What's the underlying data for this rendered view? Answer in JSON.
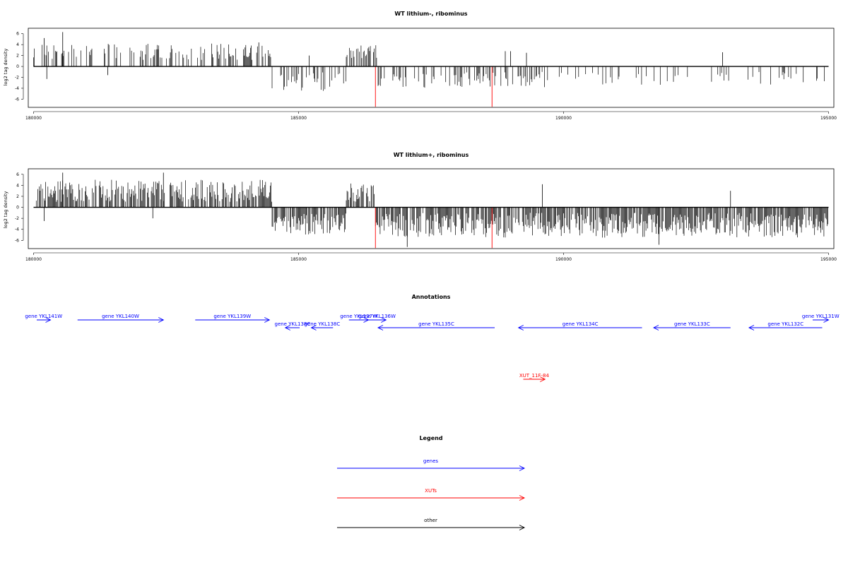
{
  "colors": {
    "genes": "#0000ff",
    "xuts": "#ff0000",
    "other": "#000000",
    "bars": "#000000"
  },
  "chart_data": [
    {
      "type": "bar",
      "title": "WT lithium-, ribominus",
      "ylabel": "log2 tag density",
      "xlim": [
        179900,
        195100
      ],
      "ylim": [
        -7.5,
        7
      ],
      "xticks": [
        180000,
        185000,
        190000,
        195000
      ],
      "yticks": [
        -6,
        -4,
        -2,
        0,
        2,
        4,
        6
      ],
      "grid": false,
      "bar_regions": [
        {
          "start": 180000,
          "end": 184500,
          "strand": 1,
          "density": 0.35,
          "hmin": 1.2,
          "hmax": 4.2
        },
        {
          "start": 184500,
          "end": 185900,
          "strand": -1,
          "density": 0.3,
          "hmin": 1.0,
          "hmax": 4.5
        },
        {
          "start": 185900,
          "end": 186500,
          "strand": 1,
          "density": 0.5,
          "hmin": 1.5,
          "hmax": 4.0
        },
        {
          "start": 186500,
          "end": 189800,
          "strand": -1,
          "density": 0.35,
          "hmin": 1.0,
          "hmax": 4.0
        },
        {
          "start": 189800,
          "end": 195000,
          "strand": -1,
          "density": 0.12,
          "hmin": 1.0,
          "hmax": 3.5
        }
      ],
      "spikes": [
        {
          "x": 180550,
          "y": 6.3
        },
        {
          "x": 180200,
          "y": 5.2
        },
        {
          "x": 180250,
          "y": -2.3
        },
        {
          "x": 181400,
          "y": -1.6
        },
        {
          "x": 184250,
          "y": 4.4
        },
        {
          "x": 185200,
          "y": 2.0
        },
        {
          "x": 188900,
          "y": 2.8
        },
        {
          "x": 189000,
          "y": 2.8
        },
        {
          "x": 189300,
          "y": 2.5
        },
        {
          "x": 193000,
          "y": 2.6
        }
      ],
      "highlight": [
        {
          "x": 186450,
          "y": -7.4
        },
        {
          "x": 188650,
          "y": -7.4
        }
      ]
    },
    {
      "type": "bar",
      "title": "WT lithium+, ribominus",
      "ylabel": "log2 tag density",
      "xlim": [
        179900,
        195100
      ],
      "ylim": [
        -7.5,
        7
      ],
      "xticks": [
        180000,
        185000,
        190000,
        195000
      ],
      "yticks": [
        -6,
        -4,
        -2,
        0,
        2,
        4,
        6
      ],
      "grid": false,
      "bar_regions": [
        {
          "start": 180050,
          "end": 184500,
          "strand": 1,
          "density": 0.75,
          "hmin": 1.0,
          "hmax": 5.0
        },
        {
          "start": 184500,
          "end": 185900,
          "strand": -1,
          "density": 0.75,
          "hmin": 1.0,
          "hmax": 5.0
        },
        {
          "start": 185900,
          "end": 186450,
          "strand": 1,
          "density": 0.75,
          "hmin": 1.0,
          "hmax": 4.5
        },
        {
          "start": 186450,
          "end": 195000,
          "strand": -1,
          "density": 0.8,
          "hmin": 1.0,
          "hmax": 5.5
        }
      ],
      "spikes": [
        {
          "x": 180550,
          "y": 6.3
        },
        {
          "x": 182450,
          "y": 6.3
        },
        {
          "x": 180200,
          "y": -2.5
        },
        {
          "x": 182250,
          "y": -2.0
        },
        {
          "x": 189600,
          "y": 4.2
        },
        {
          "x": 193150,
          "y": 3.0
        },
        {
          "x": 187050,
          "y": -7.2
        },
        {
          "x": 191800,
          "y": -6.8
        }
      ],
      "highlight": [
        {
          "x": 186450,
          "y": -7.4
        },
        {
          "x": 188650,
          "y": -7.4
        }
      ]
    }
  ],
  "annotations": {
    "title": "Annotations",
    "features": [
      {
        "label": "gene YKL141W",
        "start": 180060,
        "end": 180320,
        "strand": "+",
        "row": 0,
        "kind": "genes"
      },
      {
        "label": "gene YKL140W",
        "start": 180830,
        "end": 182450,
        "strand": "+",
        "row": 0,
        "kind": "genes"
      },
      {
        "label": "gene YKL139W",
        "start": 183050,
        "end": 184450,
        "strand": "+",
        "row": 0,
        "kind": "genes"
      },
      {
        "label": "gene YKL137W",
        "start": 185950,
        "end": 186320,
        "strand": "+",
        "row": 0,
        "kind": "genes"
      },
      {
        "label": "gene YKL136W",
        "start": 186310,
        "end": 186650,
        "strand": "+",
        "row": 0,
        "kind": "genes"
      },
      {
        "label": "gene YKL131W",
        "start": 194700,
        "end": 195000,
        "strand": "+",
        "row": 0,
        "kind": "genes"
      },
      {
        "label": "gene YKL138C",
        "start": 184750,
        "end": 185020,
        "strand": "-",
        "row": 1,
        "kind": "genes"
      },
      {
        "label": "gene YKL138C",
        "start": 185240,
        "end": 185650,
        "strand": "-",
        "row": 1,
        "kind": "genes"
      },
      {
        "label": "gene YKL135C",
        "start": 186500,
        "end": 188700,
        "strand": "-",
        "row": 1,
        "kind": "genes"
      },
      {
        "label": "gene YKL134C",
        "start": 189150,
        "end": 191480,
        "strand": "-",
        "row": 1,
        "kind": "genes"
      },
      {
        "label": "gene YKL133C",
        "start": 191700,
        "end": 193150,
        "strand": "-",
        "row": 1,
        "kind": "genes"
      },
      {
        "label": "gene YKL132C",
        "start": 193500,
        "end": 194880,
        "strand": "-",
        "row": 1,
        "kind": "genes"
      },
      {
        "label": "XUT_11F-84",
        "start": 189240,
        "end": 189650,
        "strand": "+",
        "row": 2,
        "kind": "xuts"
      }
    ]
  },
  "legend": {
    "title": "Legend",
    "items": [
      {
        "label": "genes",
        "kind": "genes"
      },
      {
        "label": "XUTs",
        "kind": "xuts"
      },
      {
        "label": "other",
        "kind": "other"
      }
    ]
  }
}
